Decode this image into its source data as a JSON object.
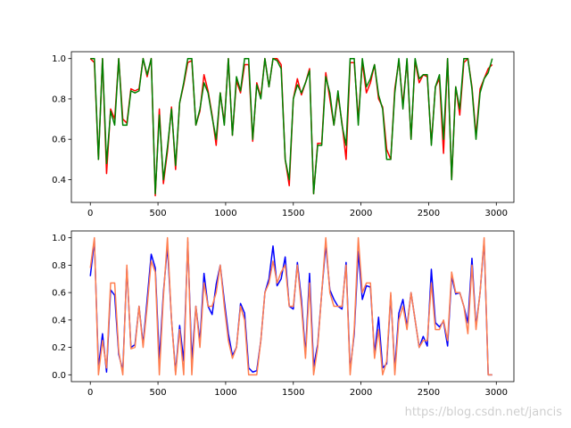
{
  "watermark": "https://blog.csdn.net/jancis",
  "chart_data": [
    {
      "type": "line",
      "x": [
        0,
        30,
        60,
        90,
        120,
        150,
        180,
        210,
        240,
        270,
        300,
        330,
        360,
        390,
        420,
        450,
        480,
        510,
        540,
        570,
        600,
        630,
        660,
        690,
        720,
        750,
        780,
        810,
        840,
        870,
        900,
        930,
        960,
        990,
        1020,
        1050,
        1080,
        1110,
        1140,
        1170,
        1200,
        1230,
        1260,
        1290,
        1320,
        1350,
        1380,
        1410,
        1440,
        1470,
        1500,
        1530,
        1560,
        1590,
        1620,
        1650,
        1680,
        1710,
        1740,
        1770,
        1800,
        1830,
        1860,
        1890,
        1920,
        1950,
        1980,
        2010,
        2040,
        2070,
        2100,
        2130,
        2160,
        2190,
        2220,
        2250,
        2280,
        2310,
        2340,
        2370,
        2400,
        2430,
        2460,
        2490,
        2520,
        2550,
        2580,
        2610,
        2640,
        2670,
        2700,
        2730,
        2760,
        2790,
        2820,
        2850,
        2880,
        2910,
        2940,
        2970
      ],
      "series": [
        {
          "color": "#ff0000",
          "values": [
            1.0,
            0.98,
            0.5,
            1.0,
            0.43,
            0.75,
            0.7,
            1.0,
            0.7,
            0.68,
            0.85,
            0.84,
            0.85,
            1.0,
            0.91,
            1.0,
            0.32,
            0.75,
            0.38,
            0.54,
            0.76,
            0.45,
            0.78,
            0.87,
            0.98,
            0.99,
            0.67,
            0.74,
            0.92,
            0.84,
            0.72,
            0.57,
            0.83,
            0.68,
            1.0,
            0.62,
            0.89,
            0.83,
            0.97,
            0.97,
            0.59,
            0.88,
            0.81,
            1.0,
            0.86,
            1.0,
            1.0,
            0.97,
            0.5,
            0.37,
            0.8,
            0.9,
            0.82,
            0.88,
            0.95,
            0.33,
            0.58,
            0.58,
            0.93,
            0.8,
            0.67,
            0.82,
            0.68,
            0.5,
            0.98,
            0.98,
            0.7,
            0.98,
            0.83,
            0.88,
            0.97,
            0.8,
            0.76,
            0.55,
            0.5,
            0.85,
            0.99,
            0.77,
            0.99,
            0.6,
            0.99,
            0.88,
            0.92,
            0.91,
            0.58,
            0.86,
            0.9,
            0.53,
            1.0,
            0.4,
            0.86,
            0.72,
            0.98,
            1.0,
            0.86,
            0.62,
            0.85,
            0.9,
            0.95,
            0.97
          ]
        },
        {
          "color": "#008000",
          "values": [
            1.0,
            1.0,
            0.5,
            1.0,
            0.48,
            0.74,
            0.67,
            1.0,
            0.67,
            0.67,
            0.84,
            0.83,
            0.84,
            1.0,
            0.92,
            1.0,
            0.33,
            0.72,
            0.4,
            0.56,
            0.75,
            0.47,
            0.78,
            0.88,
            1.0,
            1.0,
            0.67,
            0.75,
            0.88,
            0.83,
            0.71,
            0.6,
            0.83,
            0.67,
            1.0,
            0.62,
            0.91,
            0.84,
            1.0,
            1.0,
            0.6,
            0.87,
            0.8,
            1.0,
            0.86,
            1.0,
            0.99,
            0.95,
            0.5,
            0.4,
            0.8,
            0.87,
            0.83,
            0.88,
            0.94,
            0.33,
            0.57,
            0.57,
            0.91,
            0.83,
            0.67,
            0.84,
            0.67,
            0.57,
            1.0,
            1.0,
            0.67,
            1.0,
            0.86,
            0.9,
            0.97,
            0.82,
            0.75,
            0.5,
            0.5,
            0.83,
            1.0,
            0.75,
            1.0,
            0.6,
            1.0,
            0.9,
            0.92,
            0.92,
            0.57,
            0.86,
            0.92,
            0.6,
            1.0,
            0.4,
            0.86,
            0.75,
            1.0,
            1.0,
            0.85,
            0.6,
            0.83,
            0.9,
            0.93,
            1.0
          ]
        }
      ],
      "xlim": [
        -140,
        3130
      ],
      "ylim": [
        0.287,
        1.034
      ],
      "xticks": [
        0,
        500,
        1000,
        1500,
        2000,
        2500,
        3000
      ],
      "xtick_labels": [
        "0",
        "500",
        "1000",
        "1500",
        "2000",
        "2500",
        "3000"
      ],
      "yticks": [
        0.4,
        0.6,
        0.8,
        1.0
      ],
      "ytick_labels": [
        "0.4",
        "0.6",
        "0.8",
        "1.0"
      ],
      "grid": false,
      "legend": "none"
    },
    {
      "type": "line",
      "x": [
        0,
        30,
        60,
        90,
        120,
        150,
        180,
        210,
        240,
        270,
        300,
        330,
        360,
        390,
        420,
        450,
        480,
        510,
        540,
        570,
        600,
        630,
        660,
        690,
        720,
        750,
        780,
        810,
        840,
        870,
        900,
        930,
        960,
        990,
        1020,
        1050,
        1080,
        1110,
        1140,
        1170,
        1200,
        1230,
        1260,
        1290,
        1320,
        1350,
        1380,
        1410,
        1440,
        1470,
        1500,
        1530,
        1560,
        1590,
        1620,
        1650,
        1680,
        1710,
        1740,
        1770,
        1800,
        1830,
        1860,
        1890,
        1920,
        1950,
        1980,
        2010,
        2040,
        2070,
        2100,
        2130,
        2160,
        2190,
        2220,
        2250,
        2280,
        2310,
        2340,
        2370,
        2400,
        2430,
        2460,
        2490,
        2520,
        2550,
        2580,
        2610,
        2640,
        2670,
        2700,
        2730,
        2760,
        2790,
        2820,
        2850,
        2880,
        2910,
        2940,
        2970
      ],
      "series": [
        {
          "color": "#0000ff",
          "values": [
            0.72,
            0.98,
            0.05,
            0.3,
            0.02,
            0.62,
            0.58,
            0.15,
            0.03,
            0.78,
            0.2,
            0.22,
            0.5,
            0.22,
            0.55,
            0.88,
            0.78,
            0.1,
            0.6,
            0.94,
            0.4,
            0.02,
            0.36,
            0.1,
            0.97,
            0.1,
            0.5,
            0.24,
            0.74,
            0.5,
            0.44,
            0.66,
            0.8,
            0.54,
            0.3,
            0.14,
            0.2,
            0.52,
            0.45,
            0.05,
            0.02,
            0.03,
            0.25,
            0.6,
            0.7,
            0.94,
            0.65,
            0.7,
            0.86,
            0.5,
            0.48,
            0.82,
            0.55,
            0.15,
            0.74,
            0.06,
            0.22,
            0.6,
            0.95,
            0.62,
            0.55,
            0.5,
            0.48,
            0.82,
            0.03,
            0.3,
            0.9,
            0.55,
            0.65,
            0.64,
            0.15,
            0.42,
            0.05,
            0.08,
            0.58,
            0.04,
            0.45,
            0.55,
            0.35,
            0.6,
            0.4,
            0.2,
            0.28,
            0.21,
            0.77,
            0.38,
            0.35,
            0.39,
            0.21,
            0.72,
            0.59,
            0.6,
            0.5,
            0.38,
            0.85,
            0.35,
            0.6,
            0.98,
            0.0,
            0.0
          ]
        },
        {
          "color": "#ff7f50",
          "values": [
            0.78,
            1.0,
            0.0,
            0.25,
            0.05,
            0.67,
            0.67,
            0.17,
            0.0,
            0.8,
            0.19,
            0.2,
            0.5,
            0.2,
            0.5,
            0.83,
            0.75,
            0.0,
            0.57,
            1.0,
            0.4,
            0.0,
            0.33,
            0.0,
            1.0,
            0.0,
            0.5,
            0.2,
            0.67,
            0.5,
            0.5,
            0.6,
            0.8,
            0.5,
            0.25,
            0.12,
            0.2,
            0.5,
            0.4,
            0.0,
            0.0,
            0.0,
            0.25,
            0.6,
            0.67,
            0.83,
            0.67,
            0.75,
            0.8,
            0.5,
            0.5,
            0.8,
            0.5,
            0.12,
            0.67,
            0.0,
            0.2,
            0.6,
            1.0,
            0.6,
            0.5,
            0.5,
            0.5,
            0.8,
            0.0,
            0.33,
            1.0,
            0.6,
            0.67,
            0.67,
            0.12,
            0.33,
            0.0,
            0.1,
            0.6,
            0.0,
            0.4,
            0.5,
            0.33,
            0.6,
            0.4,
            0.2,
            0.25,
            0.25,
            0.67,
            0.33,
            0.33,
            0.4,
            0.25,
            0.75,
            0.6,
            0.6,
            0.5,
            0.3,
            0.8,
            0.33,
            0.6,
            1.0,
            0.0,
            0.0
          ]
        }
      ],
      "xlim": [
        -140,
        3130
      ],
      "ylim": [
        -0.05,
        1.05
      ],
      "xticks": [
        0,
        500,
        1000,
        1500,
        2000,
        2500,
        3000
      ],
      "xtick_labels": [
        "0",
        "500",
        "1000",
        "1500",
        "2000",
        "2500",
        "3000"
      ],
      "yticks": [
        0.0,
        0.2,
        0.4,
        0.6,
        0.8,
        1.0
      ],
      "ytick_labels": [
        "0.0",
        "0.2",
        "0.4",
        "0.6",
        "0.8",
        "1.0"
      ],
      "grid": false,
      "legend": "none"
    }
  ]
}
